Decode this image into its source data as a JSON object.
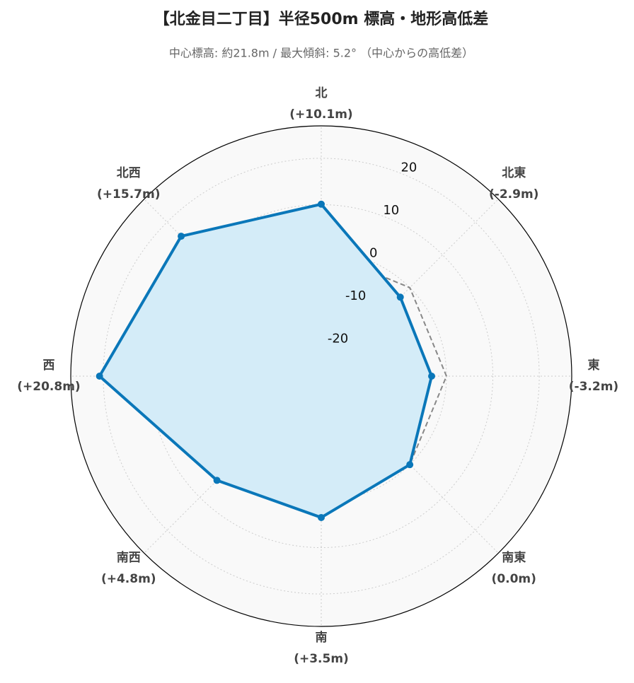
{
  "chart_data": {
    "type": "radar",
    "title": "【北金目二丁目】半径500m 標高・地形高低差",
    "subtitle": "中心標高: 約21.8m / 最大傾斜: 5.2° （中心からの高低差）",
    "categories": [
      "北",
      "北東",
      "東",
      "南東",
      "南",
      "南西",
      "西",
      "北西"
    ],
    "series": [
      {
        "color": "#0a77b9",
        "fill": "#d4ecf8",
        "values": [
          10.1,
          -2.9,
          -3.2,
          0.0,
          3.5,
          4.8,
          20.8,
          15.7
        ],
        "value_labels": [
          "(+10.1m)",
          "(-2.9m)",
          "(-3.2m)",
          "(0.0m)",
          "(+3.5m)",
          "(+4.8m)",
          "(+20.8m)",
          "(+15.7m)"
        ]
      },
      {
        "color": "#888888",
        "dash": true,
        "values": [
          0,
          0,
          0,
          0,
          0,
          0,
          0,
          0
        ]
      }
    ],
    "ylim": [
      -27,
      27
    ],
    "yticks": [
      -20,
      -10,
      0,
      10,
      20
    ],
    "grid": true
  }
}
